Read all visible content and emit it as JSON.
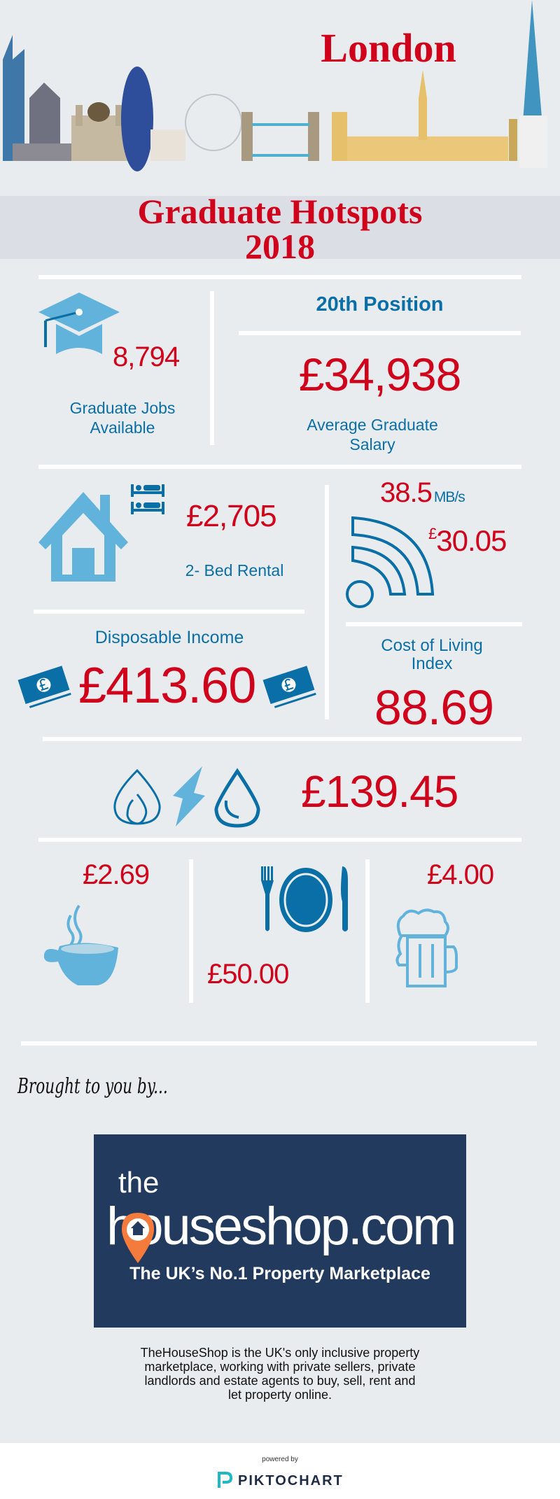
{
  "header": {
    "city": "London",
    "title_line1": "Graduate Hotspots",
    "title_line2": "2018"
  },
  "jobs": {
    "value": "8,794",
    "label": "Graduate Jobs Available",
    "icon": "graduation-cap-icon"
  },
  "salary": {
    "position": "20th Position",
    "value": "£34,938",
    "label": "Average Graduate Salary"
  },
  "rental": {
    "value": "£2,705",
    "label": "2- Bed Rental",
    "icons": [
      "house-icon",
      "bed-icon"
    ]
  },
  "broadband": {
    "speed": "38.5",
    "unit": "MB/s",
    "currency": "£",
    "price": "30.05",
    "icon": "wifi-icon"
  },
  "disposable": {
    "label": "Disposable Income",
    "value": "£413.60",
    "icon": "banknote-icon"
  },
  "cost_of_living": {
    "label": "Cost of Living Index",
    "value": "88.69"
  },
  "utilities": {
    "value": "£139.45",
    "icons": [
      "flame-icon",
      "lightning-icon",
      "water-drop-icon"
    ]
  },
  "food": {
    "coffee": "£2.69",
    "meal": "£50.00",
    "beer": "£4.00"
  },
  "sponsor": {
    "intro": "Brought to you by...",
    "logo_the": "the",
    "logo_name": "houseshop.com",
    "tagline": "The UK’s No.1 Property Marketplace",
    "description": "TheHouseShop is the UK's only inclusive property marketplace, working with private sellers, private landlords and estate agents to buy, sell, rent and let property online."
  },
  "footer": {
    "powered_by": "powered by",
    "brand": "PIKTOCHART"
  },
  "colors": {
    "accent_red": "#d0021b",
    "blue": "#0a6fa6",
    "light_blue": "#62b3dc",
    "navy": "#213a5e",
    "background": "#e9ecef"
  }
}
